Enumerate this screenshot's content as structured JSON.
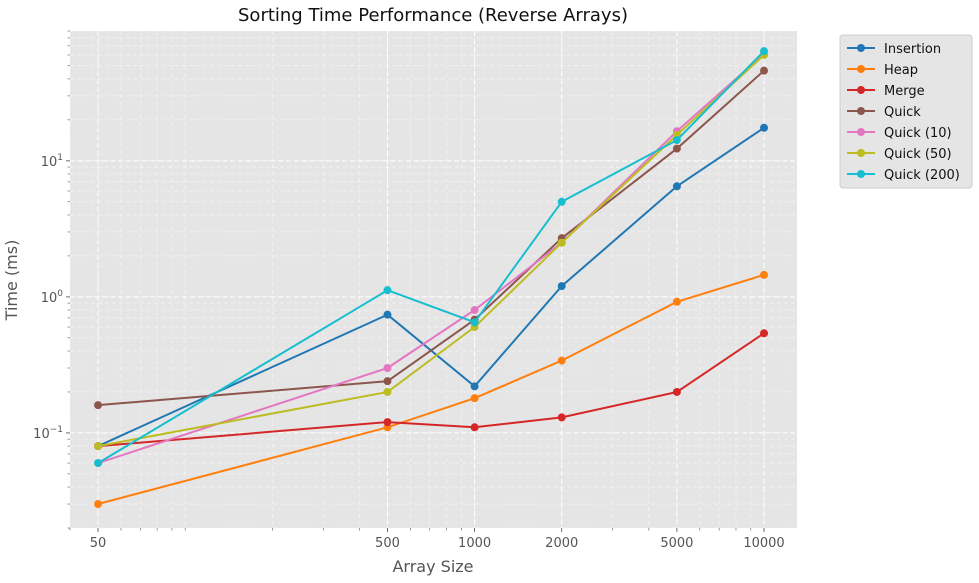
{
  "chart_data": {
    "type": "line",
    "title": "Sorting Time Performance (Reverse Arrays)",
    "xlabel": "Array Size",
    "ylabel": "Time (ms)",
    "xscale": "log",
    "yscale": "log",
    "xlim": [
      40,
      13000
    ],
    "ylim": [
      0.02,
      90
    ],
    "grid": true,
    "legend_placement": "outside-top-right",
    "x": [
      50,
      500,
      1000,
      2000,
      5000,
      10000
    ],
    "x_tick_labels": [
      "50",
      "500",
      "1000",
      "2000",
      "5000",
      "10000"
    ],
    "y_ticks": [
      {
        "value": 0.1,
        "base": "10",
        "exp": "−1"
      },
      {
        "value": 1,
        "base": "10",
        "exp": "0"
      },
      {
        "value": 10,
        "base": "10",
        "exp": "1"
      }
    ],
    "series": [
      {
        "name": "Insertion",
        "color": "#1f77b4",
        "values": [
          0.08,
          0.74,
          0.22,
          1.2,
          6.5,
          17.5
        ]
      },
      {
        "name": "Heap",
        "color": "#ff7f0e",
        "values": [
          0.03,
          0.11,
          0.18,
          0.34,
          0.92,
          1.45
        ]
      },
      {
        "name": "Merge",
        "color": "#d62728",
        "values": [
          0.08,
          0.12,
          0.11,
          0.13,
          0.2,
          0.54
        ]
      },
      {
        "name": "Quick",
        "color": "#8c564b",
        "values": [
          0.16,
          0.24,
          0.68,
          2.7,
          12.3,
          46
        ]
      },
      {
        "name": "Quick (10)",
        "color": "#e377c2",
        "values": [
          0.06,
          0.3,
          0.8,
          2.5,
          16.5,
          61
        ]
      },
      {
        "name": "Quick (50)",
        "color": "#bcbd22",
        "values": [
          0.08,
          0.2,
          0.6,
          2.5,
          15.5,
          60
        ]
      },
      {
        "name": "Quick (200)",
        "color": "#17becf",
        "values": [
          0.06,
          1.12,
          0.65,
          5.0,
          14.2,
          64
        ]
      }
    ]
  }
}
